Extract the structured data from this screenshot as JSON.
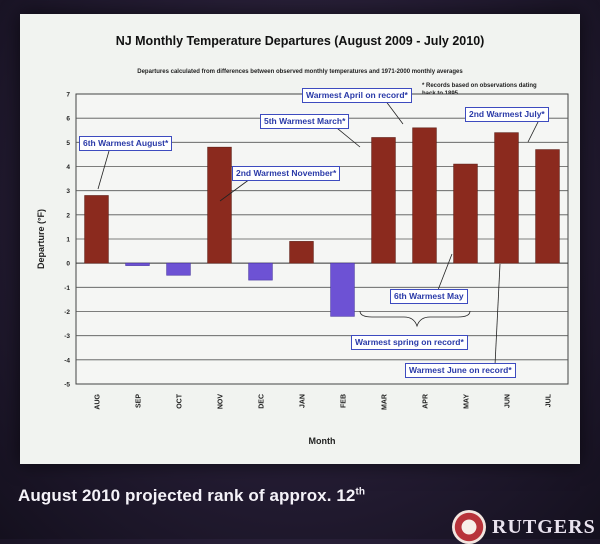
{
  "chart_data": {
    "type": "bar",
    "title": "NJ Monthly Temperature Departures (August 2009 - July 2010)",
    "subtitle": "Departures calculated from differences between observed monthly temperatures and 1971-2000 monthly averages",
    "xlabel": "Month",
    "ylabel": "Departure (°F)",
    "ylim": [
      -5,
      7
    ],
    "yticks": [
      "-5",
      "-4",
      "-3",
      "-2",
      "-1",
      "0",
      "1",
      "2",
      "3",
      "4",
      "5",
      "6",
      "7"
    ],
    "categories": [
      "AUG",
      "SEP",
      "OCT",
      "NOV",
      "DEC",
      "JAN",
      "FEB",
      "MAR",
      "APR",
      "MAY",
      "JUN",
      "JUL"
    ],
    "values": [
      2.8,
      -0.1,
      -0.5,
      4.8,
      -0.7,
      0.9,
      -2.2,
      5.2,
      5.6,
      4.1,
      5.4,
      4.7
    ],
    "positive_color": "#8b2a1e",
    "negative_color": "#6d52d4",
    "grid": true,
    "legend": "none"
  },
  "annotations": [
    {
      "text": "6th Warmest August*",
      "target": "AUG"
    },
    {
      "text": "2nd Warmest November*",
      "target": "NOV"
    },
    {
      "text": "5th Warmest March*",
      "target": "MAR"
    },
    {
      "text": "Warmest April on record*",
      "target": "APR"
    },
    {
      "text": "2nd Warmest July*",
      "target": "JUL"
    },
    {
      "text": "6th Warmest May",
      "target": "MAY"
    },
    {
      "text": "Warmest spring on record*",
      "target": "MAR-MAY"
    },
    {
      "text": "Warmest June on record*",
      "target": "JUN"
    }
  ],
  "footnote": "* Records based on observations dating back to 1895",
  "caption": {
    "main": "August 2010 projected rank of approx. 12",
    "suffix": "th"
  },
  "logo_text": "RUTGERS",
  "colors": {
    "callout_border": "#3d4bbf",
    "callout_text": "#2a3aa8",
    "slide_bg": "#f1f3f0"
  }
}
